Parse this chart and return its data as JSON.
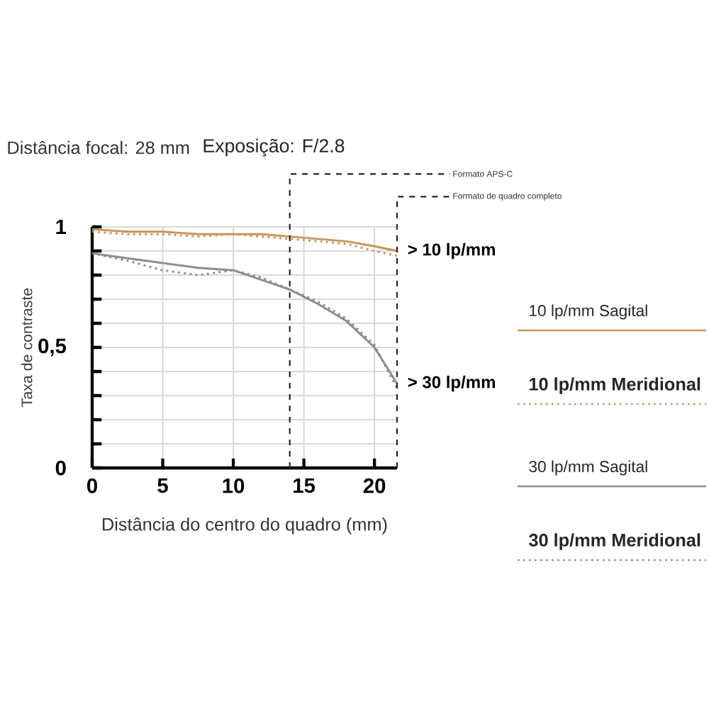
{
  "chart_data": {
    "type": "line",
    "title": "Distância focal: 28 mm",
    "subtitle": "Exposição: F/2.8",
    "xlabel": "Distância do centro do quadro (mm)",
    "ylabel": "Taxa de contraste",
    "xlim": [
      0,
      21.6
    ],
    "ylim": [
      0,
      1
    ],
    "xticks": [
      0,
      5,
      10,
      15,
      20
    ],
    "yticks": [
      0,
      {
        "value": 0.1,
        "label": null
      },
      {
        "value": 0.2,
        "label": null
      },
      {
        "value": 0.3,
        "label": null
      },
      {
        "value": 0.4,
        "label": null
      },
      {
        "value": 0.5,
        "label": "0,5"
      },
      {
        "value": 0.6,
        "label": null
      },
      {
        "value": 0.7,
        "label": null
      },
      {
        "value": 0.8,
        "label": null
      },
      {
        "value": 0.9,
        "label": null
      },
      1
    ],
    "grid": true,
    "legend": "right",
    "marker": "none",
    "series": [
      {
        "name": "10 lp/mm Sagital",
        "color": "#c8955a",
        "line_style": "solid",
        "x": [
          0,
          2.5,
          5,
          7.5,
          10,
          12,
          14,
          16,
          18,
          20,
          21.6
        ],
        "values": [
          0.99,
          0.98,
          0.98,
          0.97,
          0.97,
          0.97,
          0.96,
          0.95,
          0.94,
          0.92,
          0.9
        ]
      },
      {
        "name": "10 lp/mm Meridional",
        "color": "#c8955a",
        "line_style": "dotted",
        "x": [
          0,
          2.5,
          5,
          7.5,
          10,
          12,
          14,
          16,
          18,
          20,
          21.6
        ],
        "values": [
          0.98,
          0.97,
          0.97,
          0.96,
          0.97,
          0.96,
          0.95,
          0.94,
          0.93,
          0.9,
          0.88
        ]
      },
      {
        "name": "30 lp/mm Sagital",
        "color": "#8c8c8c",
        "line_style": "solid",
        "x": [
          0,
          2.5,
          5,
          7.5,
          10,
          12,
          14,
          16,
          18,
          20,
          21.6
        ],
        "values": [
          0.89,
          0.87,
          0.85,
          0.83,
          0.82,
          0.78,
          0.74,
          0.68,
          0.61,
          0.5,
          0.35
        ]
      },
      {
        "name": "30 lp/mm Meridional",
        "color": "#8c8c8c",
        "line_style": "dotted",
        "x": [
          0,
          2.5,
          5,
          7.5,
          10,
          12,
          14,
          16,
          18,
          20,
          21.6
        ],
        "values": [
          0.89,
          0.86,
          0.82,
          0.8,
          0.82,
          0.79,
          0.74,
          0.69,
          0.62,
          0.51,
          0.33
        ]
      }
    ],
    "ref_lines": [
      {
        "axis": "x",
        "value": 14,
        "label": "Formato APS-C",
        "color": "#222222",
        "line_style": "dashed"
      },
      {
        "axis": "x",
        "value": 21.6,
        "label": "Formato de quadro completo",
        "color": "#222222",
        "line_style": "dashed"
      }
    ],
    "annotations": [
      {
        "text": "> 10 lp/mm",
        "x": 21.6,
        "y": 0.9
      },
      {
        "text": "> 30 lp/mm",
        "x": 21.6,
        "y": 0.35
      }
    ]
  }
}
